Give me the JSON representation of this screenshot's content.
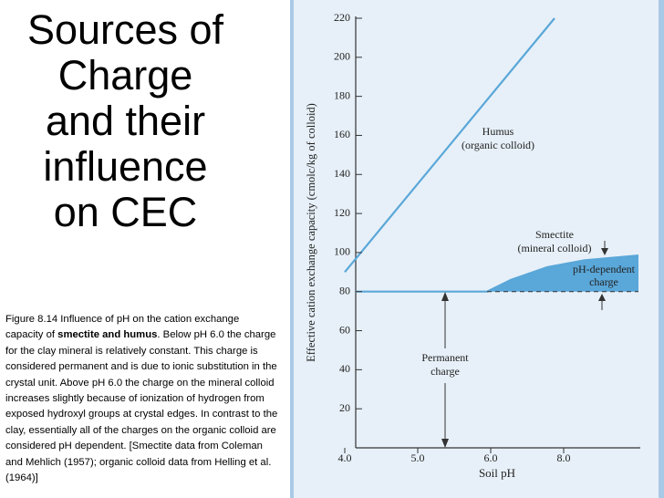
{
  "title_lines": [
    "Sources of",
    "Charge",
    "and their",
    "influence",
    "on CEC"
  ],
  "caption": [
    "Figure 8.14  Influence of pH on the cation exchange capacity of ",
    "smectite and humus",
    ". Below pH 6.0 the charge for the clay mineral is relatively constant. This charge is considered permanent and is due to ionic substitution in the crystal unit. Above pH 6.0 the charge on the mineral colloid increases slightly because of ionization of hydrogen from exposed hydroxyl groups at crystal edges. In contrast to the clay, essentially all of the charges on the organic colloid are considered pH dependent. [Smectite data from Coleman and Mehlich (1957); organic colloid data from Helling et al. (1964)]"
  ],
  "chart_data": {
    "type": "line",
    "x_label": "Soil pH",
    "y_label": "Effective cation exchange capacity (cmolc/kg of colloid)",
    "xlim": [
      4.15,
      10.05
    ],
    "xticks": [
      {
        "value": 4,
        "label": "4.0"
      },
      {
        "value": 5,
        "label": "5.0"
      },
      {
        "value": 6,
        "label": "6.0"
      },
      {
        "value": 8,
        "label": "8.0"
      }
    ],
    "ylim": [
      0,
      220
    ],
    "yticks": [
      20,
      40,
      60,
      80,
      100,
      120,
      140,
      160,
      180,
      200,
      220
    ],
    "series": [
      {
        "color": "#5aa7d9",
        "x": [
          4.0,
          7.75
        ],
        "values": [
          90,
          220
        ]
      },
      {
        "color": "#5aa7d9",
        "x": [
          4.15,
          5.95,
          6.55,
          7.55,
          8.55,
          10.05
        ],
        "values": [
          80,
          80,
          86,
          92.5,
          96,
          98.5
        ]
      },
      {
        "color": "#333333",
        "dash": true,
        "x": [
          5.95,
          10.05
        ],
        "values": [
          80,
          80
        ]
      }
    ],
    "annotations": [
      "Humus",
      "(organic colloid)",
      "Smectite",
      "(mineral colloid)",
      "pH-dependent",
      "charge",
      "Permanent",
      "charge"
    ]
  }
}
